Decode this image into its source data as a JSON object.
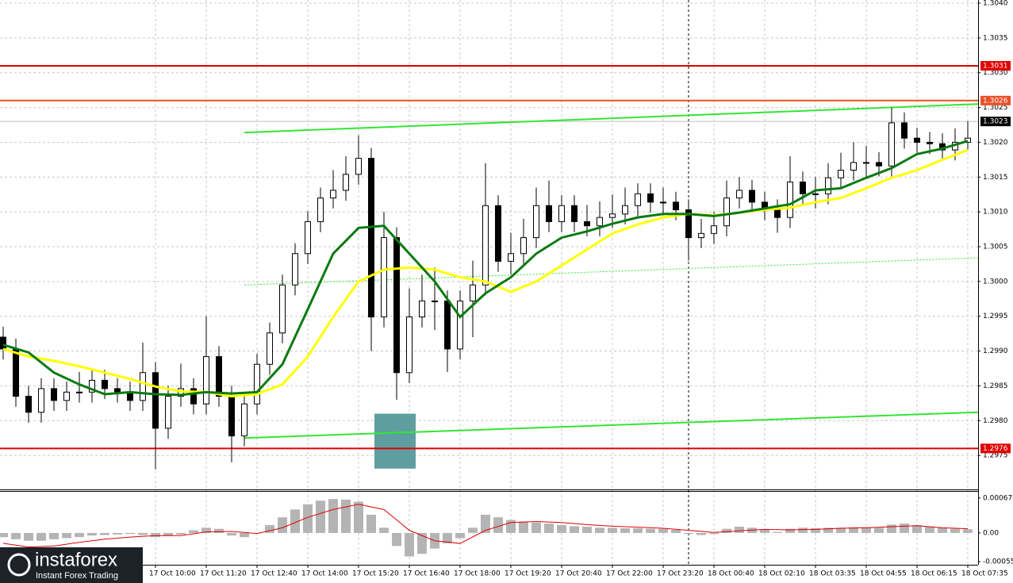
{
  "chart_data": {
    "type": "candlestick",
    "categories": [
      null,
      null,
      null,
      null,
      null,
      null,
      null,
      null,
      null,
      null,
      null,
      null,
      "17 Oct 10:00",
      null,
      null,
      null,
      "17 Oct 11:20",
      null,
      null,
      null,
      "17 Oct 12:40",
      null,
      null,
      null,
      "17 Oct 14:00",
      null,
      null,
      null,
      "17 Oct 15:20",
      null,
      null,
      null,
      "17 Oct 16:40",
      null,
      null,
      null,
      "17 Oct 18:00",
      null,
      null,
      null,
      "17 Oct 19:20",
      null,
      null,
      null,
      "17 Oct 20:40",
      null,
      null,
      null,
      "17 Oct 22:00",
      null,
      null,
      null,
      "17 Oct 23:20",
      null,
      null,
      null,
      "18 Oct 00:40",
      null,
      null,
      null,
      "18 Oct 02:10",
      null,
      null,
      null,
      "18 Oct 03:35",
      null,
      null,
      null,
      "18 Oct 04:55",
      null,
      null,
      null,
      "18 Oct 06:15",
      null,
      null,
      null,
      "18 Oct 07:35"
    ],
    "open": [
      1.2992,
      1.29903,
      1.29835,
      1.29812,
      1.29846,
      1.29829,
      1.29841,
      1.29841,
      1.29858,
      1.29846,
      1.29841,
      1.29829,
      1.29869,
      1.29789,
      1.29835,
      1.29846,
      1.29824,
      1.29892,
      1.29835,
      1.29778,
      1.29824,
      1.29881,
      1.29926,
      1.29995,
      1.3004,
      1.30086,
      1.3012,
      1.30131,
      1.30154,
      1.30177,
      1.29949,
      1.30063,
      1.29869,
      1.29949,
      1.29972,
      1.29972,
      1.29903,
      1.29972,
      1.29995,
      1.30109,
      1.30029,
      1.3004,
      1.30063,
      1.30109,
      1.30086,
      1.30109,
      1.30086,
      1.3008,
      1.30092,
      1.30097,
      1.30109,
      1.30126,
      1.30114,
      1.30114,
      1.30103,
      1.30063,
      1.30069,
      1.3008,
      1.3012,
      1.30131,
      1.30114,
      1.30103,
      1.30092,
      1.30143,
      1.30126,
      1.30126,
      1.30149,
      1.3016,
      1.30171,
      1.30171,
      1.30166,
      1.30228,
      1.30206,
      1.302,
      1.30198,
      1.30189,
      1.302
    ],
    "high": [
      1.29935,
      1.29918,
      1.2985,
      1.29861,
      1.29861,
      1.29856,
      1.2987,
      1.29873,
      1.29873,
      1.29861,
      1.29856,
      1.29912,
      1.29884,
      1.2985,
      1.29882,
      1.29861,
      1.2995,
      1.29907,
      1.2985,
      1.29839,
      1.29896,
      1.29941,
      1.3001,
      1.30055,
      1.30101,
      1.30135,
      1.3016,
      1.3018,
      1.3021,
      1.30192,
      1.301,
      1.30078,
      1.2999,
      1.3001,
      1.3002,
      1.29987,
      1.29987,
      1.3003,
      1.3017,
      1.30124,
      1.3007,
      1.3009,
      1.30135,
      1.30145,
      1.30124,
      1.30124,
      1.3011,
      1.30115,
      1.30125,
      1.30135,
      1.30141,
      1.30141,
      1.30135,
      1.30129,
      1.30118,
      1.3009,
      1.301,
      1.30145,
      1.3015,
      1.30146,
      1.30129,
      1.30118,
      1.3018,
      1.30158,
      1.3015,
      1.3017,
      1.30185,
      1.302,
      1.30195,
      1.30186,
      1.3025,
      1.30243,
      1.30221,
      1.30215,
      1.30213,
      1.3022,
      1.3023
    ],
    "low": [
      1.29888,
      1.2982,
      1.29797,
      1.29797,
      1.29814,
      1.29814,
      1.29826,
      1.29826,
      1.29831,
      1.29826,
      1.29814,
      1.29814,
      1.2973,
      1.29774,
      1.2982,
      1.29809,
      1.29809,
      1.2982,
      1.2974,
      1.29763,
      1.29809,
      1.29866,
      1.29911,
      1.2998,
      1.30025,
      1.30071,
      1.30105,
      1.30116,
      1.30139,
      1.299,
      1.29934,
      1.2983,
      1.29854,
      1.29934,
      1.2993,
      1.2987,
      1.29888,
      1.2992,
      1.2998,
      1.30014,
      1.3001,
      1.30025,
      1.30048,
      1.30071,
      1.30071,
      1.30071,
      1.30065,
      1.30065,
      1.30077,
      1.30082,
      1.30094,
      1.30099,
      1.30095,
      1.30088,
      1.3003,
      1.30048,
      1.30054,
      1.30065,
      1.30105,
      1.30099,
      1.30088,
      1.3007,
      1.30077,
      1.30111,
      1.30105,
      1.30111,
      1.30134,
      1.30145,
      1.3015,
      1.30151,
      1.30151,
      1.30191,
      1.30185,
      1.30183,
      1.30174,
      1.30174,
      1.3019
    ],
    "close": [
      1.29903,
      1.29835,
      1.29812,
      1.29846,
      1.29829,
      1.29841,
      1.29841,
      1.29858,
      1.29846,
      1.29841,
      1.29829,
      1.29869,
      1.29789,
      1.29835,
      1.29846,
      1.29824,
      1.29892,
      1.29835,
      1.29778,
      1.29824,
      1.29881,
      1.29926,
      1.29995,
      1.3004,
      1.30086,
      1.3012,
      1.30131,
      1.30154,
      1.30177,
      1.29949,
      1.30063,
      1.29869,
      1.29949,
      1.29972,
      1.29972,
      1.29903,
      1.29972,
      1.29995,
      1.30109,
      1.30029,
      1.3004,
      1.30063,
      1.30109,
      1.30086,
      1.30109,
      1.30086,
      1.3008,
      1.30092,
      1.30097,
      1.30109,
      1.30126,
      1.30114,
      1.30114,
      1.30103,
      1.30063,
      1.30069,
      1.3008,
      1.3012,
      1.30131,
      1.30114,
      1.30103,
      1.30092,
      1.30143,
      1.30126,
      1.30126,
      1.30149,
      1.3016,
      1.30171,
      1.30171,
      1.30166,
      1.30228,
      1.30206,
      1.302,
      1.30198,
      1.30189,
      1.302,
      1.30206
    ],
    "up_color": "#ffffff",
    "down_color": "#000000",
    "series": [
      {
        "color": "#ffff00",
        "x": [
          0,
          2,
          4,
          6,
          8,
          10,
          12,
          14,
          16,
          18,
          20,
          22,
          24,
          26,
          28,
          30,
          32,
          34,
          36,
          38,
          40,
          42,
          44,
          46,
          48,
          50,
          52,
          54,
          56,
          58,
          60,
          62,
          64,
          66,
          68,
          70,
          72,
          74,
          76
        ],
        "values": [
          1.29903,
          1.29892,
          1.29886,
          1.29878,
          1.29869,
          1.2986,
          1.29849,
          1.29842,
          1.29841,
          1.29835,
          1.29838,
          1.29852,
          1.29892,
          1.29949,
          1.3,
          1.30017,
          1.3002,
          1.30017,
          1.30006,
          1.3,
          1.29985,
          1.3,
          1.30023,
          1.30046,
          1.30069,
          1.30082,
          1.30092,
          1.30097,
          1.30095,
          1.30099,
          1.30103,
          1.30106,
          1.30114,
          1.3012,
          1.30134,
          1.30149,
          1.3016,
          1.30175,
          1.30189
        ]
      },
      {
        "color": "#0a7a12",
        "x": [
          0,
          2,
          4,
          6,
          8,
          10,
          12,
          14,
          16,
          18,
          20,
          22,
          24,
          26,
          28,
          30,
          32,
          34,
          36,
          38,
          40,
          42,
          44,
          46,
          48,
          50,
          52,
          54,
          56,
          58,
          60,
          62,
          64,
          66,
          68,
          70,
          72,
          74,
          76
        ],
        "values": [
          1.29909,
          1.29898,
          1.29869,
          1.29852,
          1.29838,
          1.29841,
          1.29838,
          1.29837,
          1.29841,
          1.29839,
          1.29841,
          1.29881,
          1.2996,
          1.3004,
          1.30077,
          1.3008,
          1.3004,
          1.3,
          1.29949,
          1.29983,
          1.30006,
          1.3004,
          1.30063,
          1.30072,
          1.30083,
          1.30092,
          1.30097,
          1.30097,
          1.30094,
          1.30099,
          1.30105,
          1.30111,
          1.30131,
          1.30134,
          1.30149,
          1.30163,
          1.30183,
          1.30191,
          1.30202
        ]
      }
    ],
    "ylim": [
      1.297,
      1.304
    ],
    "yticks": [
      {
        "value": 1.304,
        "label": "1.3040"
      },
      1.3035,
      {
        "value": 1.303,
        "label": "1.3030"
      },
      1.3025,
      {
        "value": 1.302,
        "label": "1.3020"
      },
      1.3015,
      {
        "value": 1.301,
        "label": "1.3010"
      },
      1.3005,
      {
        "value": 1.3,
        "label": "1.3000"
      },
      1.2995,
      {
        "value": 1.299,
        "label": "1.2990"
      },
      1.2985,
      {
        "value": 1.298,
        "label": "1.2980"
      },
      1.2975
    ],
    "grid": true,
    "levels": [
      {
        "value": 1.3031,
        "color": "#e00000"
      },
      {
        "value": 1.3026,
        "color": "#e8502a"
      },
      {
        "value": 1.3023,
        "color": "#c0c0c0"
      },
      {
        "value": 1.2976,
        "color": "#e00000"
      }
    ],
    "trendlines": [
      {
        "x1": 19,
        "y1": 1.30214,
        "x2": 76.8,
        "y2": 1.30255,
        "color": "#33e633",
        "style": "solid"
      },
      {
        "x1": 19,
        "y1": 1.29775,
        "x2": 76.8,
        "y2": 1.29812,
        "color": "#33e633",
        "style": "solid"
      },
      {
        "x1": 19,
        "y1": 1.29995,
        "x2": 76.8,
        "y2": 1.30034,
        "color": "#33e633",
        "style": "dotted"
      }
    ],
    "zones": [
      {
        "x1": 29.25,
        "x2": 32.5,
        "y1": 1.2981,
        "y2": 1.29731,
        "color": "#5f9ea0"
      }
    ],
    "vlines": [
      54
    ],
    "indicator": {
      "type": "macd",
      "histogram": [
        -8e-05,
        -0.00012,
        -0.00015,
        -0.00015,
        -0.00012,
        -0.0001,
        -8e-05,
        -5e-05,
        -4e-05,
        -3e-05,
        -2e-05,
        -4e-05,
        -8e-05,
        -6e-05,
        -3e-05,
        5e-05,
        0.0001,
        8e-05,
        -5e-05,
        -8e-05,
        0,
        0.00015,
        0.0003,
        0.00045,
        0.00055,
        0.00062,
        0.00065,
        0.00064,
        0.0006,
        0.00035,
        0.0001,
        -0.00025,
        -0.00045,
        -0.0004,
        -0.0003,
        -0.0002,
        -0.0001,
        0.0001,
        0.00035,
        0.0003,
        0.00025,
        0.00022,
        0.0002,
        0.00018,
        0.00015,
        0.00013,
        0.00012,
        0.0001,
        0.0001,
        9e-05,
        9e-05,
        8e-05,
        8e-05,
        6e-05,
        -2e-05,
        -4e-05,
        -2e-05,
        8e-05,
        0.00012,
        0.0001,
        6e-05,
        2e-05,
        8e-05,
        0.0001,
        9e-05,
        0.0001,
        0.0001,
        0.00011,
        0.00011,
        0.0001,
        0.00016,
        0.00018,
        0.00015,
        0.00012,
        0.0001,
        8e-05,
        7e-05
      ],
      "histogram_color": "#b4b4b4",
      "signal": {
        "color": "#e00000",
        "x": [
          0,
          2,
          4,
          6,
          8,
          10,
          12,
          14,
          16,
          18,
          20,
          22,
          24,
          26,
          28,
          30,
          32,
          34,
          36,
          38,
          40,
          42,
          44,
          46,
          48,
          50,
          52,
          54,
          56,
          58,
          60,
          62,
          64,
          66,
          68,
          70,
          72,
          74,
          76
        ],
        "values": [
          -0.0002,
          -0.00027,
          -0.00025,
          -0.00018,
          -0.00012,
          -8e-05,
          -5e-05,
          -5e-05,
          2e-05,
          3e-05,
          -1e-05,
          0.0001,
          0.0003,
          0.00045,
          0.00055,
          0.00045,
          5e-05,
          -0.00015,
          -0.0002,
          5e-05,
          0.0002,
          0.00022,
          0.0002,
          0.00016,
          0.00013,
          0.00011,
          9e-05,
          5e-05,
          1e-05,
          4e-05,
          7e-05,
          6e-05,
          7e-05,
          9e-05,
          0.0001,
          0.00012,
          0.00014,
          0.0001,
          8e-05
        ]
      },
      "ylim": [
        -0.00061,
        0.00079
      ],
      "yticks": [
        0.00067,
        {
          "value": 0,
          "label": "0.00"
        },
        -0.00055
      ]
    }
  },
  "logo": {
    "name": "instaforex",
    "tagline": "Instant Forex Trading"
  }
}
